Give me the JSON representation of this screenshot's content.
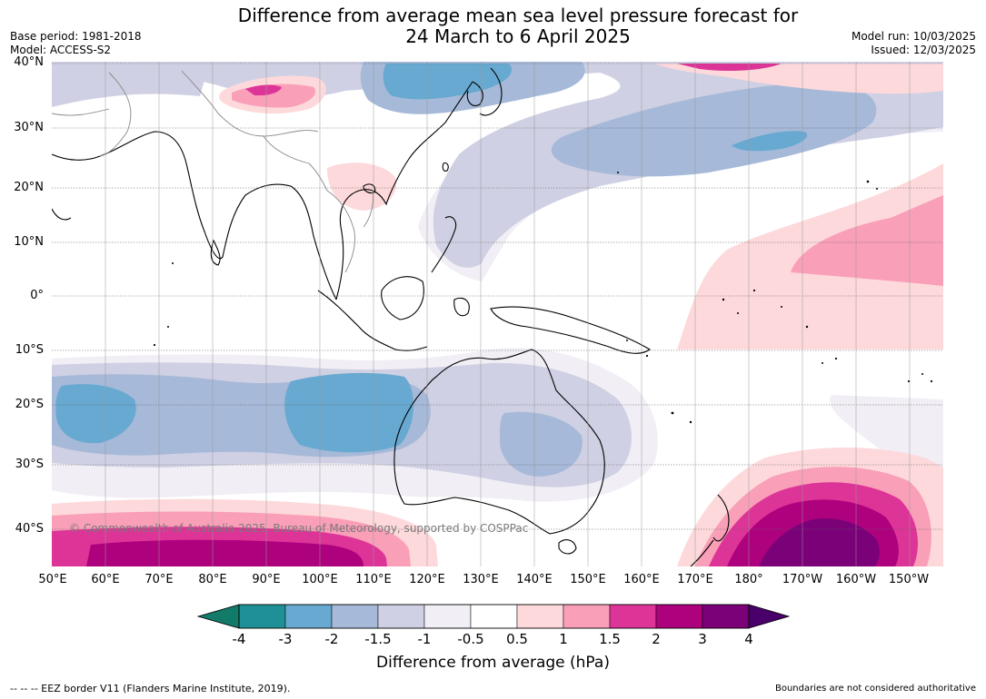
{
  "title": {
    "line1": "Difference from average mean sea level pressure forecast for",
    "line2": "24 March to 6 April 2025"
  },
  "info_left": {
    "base_period": "Base period: 1981-2018",
    "model": "Model: ACCESS-S2"
  },
  "info_right": {
    "model_run": "Model run: 10/03/2025",
    "issued": "Issued: 12/03/2025"
  },
  "lat_labels": [
    "40°N",
    "30°N",
    "20°N",
    "10°N",
    "0°",
    "10°S",
    "20°S",
    "30°S",
    "40°S"
  ],
  "lon_labels": [
    "50°E",
    "60°E",
    "70°E",
    "80°E",
    "90°E",
    "100°E",
    "110°E",
    "120°E",
    "130°E",
    "140°E",
    "150°E",
    "160°E",
    "170°E",
    "180°",
    "170°W",
    "160°W",
    "150°W"
  ],
  "copyright": "© Commonwealth of Australia 2025, Bureau of Meteorology, supported by COSPPac",
  "colorbar": {
    "title": "Difference from average (hPa)",
    "ticks": [
      "-4",
      "-3",
      "-2",
      "-1.5",
      "-1",
      "-0.5",
      "0.5",
      "1",
      "1.5",
      "2",
      "3",
      "4"
    ],
    "colors": [
      "#1f9196",
      "#67a9d0",
      "#a6b9d8",
      "#cfd0e3",
      "#f1eef5",
      "#ffffff",
      "#fdd9db",
      "#f99fb8",
      "#dd3497",
      "#ae017e",
      "#7a0177"
    ],
    "extend_low_color": "#117a68",
    "extend_high_color": "#49006a"
  },
  "footer": {
    "eez": "--  --  -- EEZ border V11 (Flanders Marine Institute, 2019).",
    "boundaries": "Boundaries are not considered authoritative"
  },
  "map_colors": {
    "land_outline": "#000000",
    "borders": "#888888",
    "grid": "#666666"
  }
}
